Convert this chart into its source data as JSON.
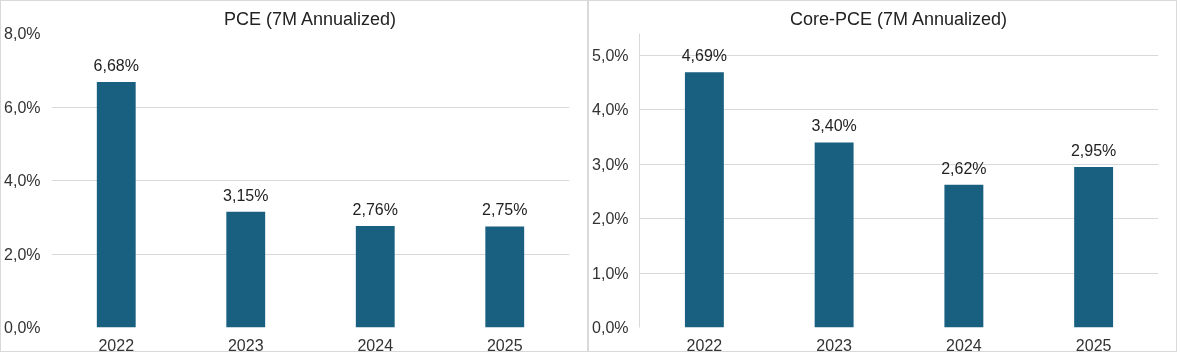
{
  "chart_data": [
    {
      "type": "bar",
      "title": "PCE (7M Annualized)",
      "categories": [
        "2022",
        "2023",
        "2024",
        "2025"
      ],
      "values": [
        6.68,
        3.15,
        2.76,
        2.75
      ],
      "value_labels": [
        "6,68%",
        "3,15%",
        "2,76%",
        "2,75%"
      ],
      "color": "#185f80",
      "ylim": [
        0,
        8
      ],
      "yticks": [
        {
          "value": 0,
          "label": "0,0%"
        },
        {
          "value": 2,
          "label": "2,0%"
        },
        {
          "value": 4,
          "label": "4,0%"
        },
        {
          "value": 6,
          "label": "6,0%"
        },
        {
          "value": 8,
          "label": "8,0%"
        }
      ],
      "grid": "y"
    },
    {
      "type": "bar",
      "title": "Core-PCE (7M Annualized)",
      "categories": [
        "2022",
        "2023",
        "2024",
        "2025"
      ],
      "values": [
        4.69,
        3.4,
        2.62,
        2.95
      ],
      "value_labels": [
        "4,69%",
        "3,40%",
        "2,62%",
        "2,95%"
      ],
      "color": "#185f80",
      "ylim": [
        0,
        5.4
      ],
      "yticks": [
        {
          "value": 0,
          "label": "0,0%"
        },
        {
          "value": 1,
          "label": "1,0%"
        },
        {
          "value": 2,
          "label": "2,0%"
        },
        {
          "value": 3,
          "label": "3,0%"
        },
        {
          "value": 4,
          "label": "4,0%"
        },
        {
          "value": 5,
          "label": "5,0%"
        }
      ],
      "grid": "y"
    }
  ]
}
